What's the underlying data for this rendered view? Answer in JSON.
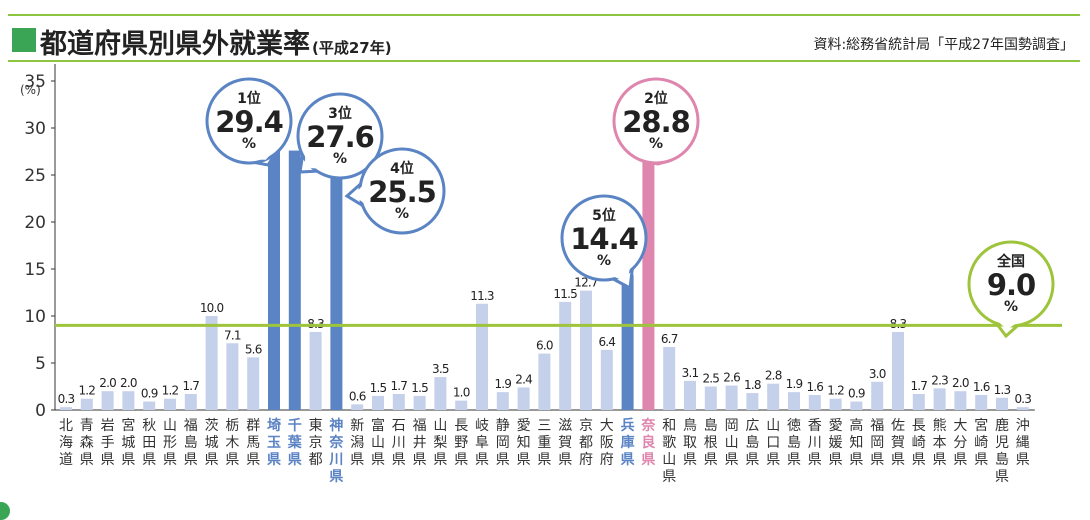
{
  "header": {
    "title": "都道府県別県外就業率",
    "subtitle": "(平成27年)",
    "source": "資料:総務省統計局「平成27年国勢調査」"
  },
  "colors": {
    "normal": "#c5d0ea",
    "highlight": "#5b84c4",
    "nara": "#de86ad",
    "national": "#9ec43c"
  },
  "chart_data": {
    "type": "bar",
    "title": "都道府県別県外就業率",
    "unit_label": "(%)",
    "ylim": [
      0,
      38
    ],
    "yticks": [
      0,
      5,
      10,
      15,
      20,
      25,
      30,
      35
    ],
    "reference_line": {
      "name": "全国",
      "value": 9.0
    },
    "categories": [
      "北海道",
      "青森県",
      "岩手県",
      "宮城県",
      "秋田県",
      "山形県",
      "福島県",
      "茨城県",
      "栃木県",
      "群馬県",
      "埼玉県",
      "千葉県",
      "東京都",
      "神奈川県",
      "新潟県",
      "富山県",
      "石川県",
      "福井県",
      "山梨県",
      "長野県",
      "岐阜県",
      "静岡県",
      "愛知県",
      "三重県",
      "滋賀県",
      "京都府",
      "大阪府",
      "兵庫県",
      "奈良県",
      "和歌山県",
      "鳥取県",
      "島根県",
      "岡山県",
      "広島県",
      "山口県",
      "徳島県",
      "香川県",
      "愛媛県",
      "高知県",
      "福岡県",
      "佐賀県",
      "長崎県",
      "熊本県",
      "大分県",
      "宮崎県",
      "鹿児島県",
      "沖縄県"
    ],
    "values": [
      0.3,
      1.2,
      2.0,
      2.0,
      0.9,
      1.2,
      1.7,
      10.0,
      7.1,
      5.6,
      29.4,
      27.6,
      8.3,
      25.5,
      0.6,
      1.5,
      1.7,
      1.5,
      3.5,
      1.0,
      11.3,
      1.9,
      2.4,
      6.0,
      11.5,
      12.7,
      6.4,
      14.4,
      28.8,
      6.7,
      3.1,
      2.5,
      2.6,
      1.8,
      2.8,
      1.9,
      1.6,
      1.2,
      0.9,
      3.0,
      8.3,
      1.7,
      2.3,
      2.0,
      1.6,
      1.3,
      0.3
    ],
    "highlighted": [
      "埼玉県",
      "千葉県",
      "神奈川県",
      "兵庫県"
    ],
    "nara": "奈良県",
    "callouts": [
      {
        "prefecture": "埼玉県",
        "rank": "1位",
        "value": "29.4",
        "unit": "%"
      },
      {
        "prefecture": "奈良県",
        "rank": "2位",
        "value": "28.8",
        "unit": "%"
      },
      {
        "prefecture": "千葉県",
        "rank": "3位",
        "value": "27.6",
        "unit": "%"
      },
      {
        "prefecture": "神奈川県",
        "rank": "4位",
        "value": "25.5",
        "unit": "%"
      },
      {
        "prefecture": "兵庫県",
        "rank": "5位",
        "value": "14.4",
        "unit": "%"
      },
      {
        "prefecture": "全国",
        "rank": "全国",
        "value": "9.0",
        "unit": "%"
      }
    ]
  }
}
